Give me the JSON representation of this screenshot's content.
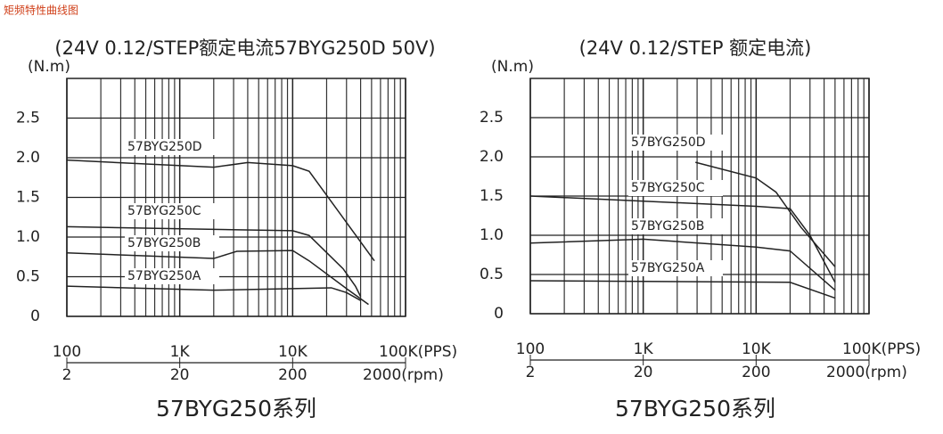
{
  "header": "矩频特性曲线图",
  "chart_data": [
    {
      "type": "line",
      "title": "(24V 0.12/STEP额定电流57BYG250D 50V)",
      "y_label": "(N.m)",
      "caption": "57BYG250系列",
      "xscale": "log",
      "grid": true,
      "color": "#222222",
      "xlim": [
        100,
        100000
      ],
      "xticks": [
        100,
        {
          "value": 1000,
          "label": "1K"
        },
        {
          "value": 10000,
          "label": "10K"
        },
        {
          "value": 100000,
          "label": "100K(PPS)"
        }
      ],
      "x2lim": [
        2,
        2000
      ],
      "x2ticks": [
        2,
        20,
        200,
        {
          "value": 2000,
          "label": "2000(rpm)"
        }
      ],
      "ylim": [
        0,
        3
      ],
      "yticks": [
        0,
        0.5,
        {
          "value": 1,
          "label": "1.0"
        },
        1.5,
        {
          "value": 2,
          "label": "2.0"
        },
        2.5
      ],
      "series": [
        {
          "name": "57BYG250D",
          "x": [
            100,
            2000,
            4000,
            10000,
            14000,
            53000
          ],
          "values": [
            1.97,
            1.88,
            1.94,
            1.9,
            1.83,
            0.7
          ]
        },
        {
          "name": "57BYG250C",
          "x": [
            100,
            10000,
            14000,
            28000,
            36000,
            40000
          ],
          "values": [
            1.13,
            1.08,
            1.02,
            0.6,
            0.38,
            0.25
          ]
        },
        {
          "name": "57BYG250B",
          "x": [
            100,
            2000,
            3200,
            10000,
            14000,
            30000,
            47000
          ],
          "values": [
            0.8,
            0.73,
            0.82,
            0.83,
            0.7,
            0.35,
            0.15
          ]
        },
        {
          "name": "57BYG250A",
          "x": [
            100,
            2000,
            10000,
            22000,
            30000,
            40000
          ],
          "values": [
            0.38,
            0.33,
            0.35,
            0.36,
            0.3,
            0.2
          ]
        }
      ]
    },
    {
      "type": "line",
      "title": "(24V 0.12/STEP 额定电流)",
      "y_label": "(N.m)",
      "caption": "57BYG250系列",
      "xscale": "log",
      "grid": true,
      "color": "#222222",
      "xlim": [
        100,
        100000
      ],
      "xticks": [
        100,
        {
          "value": 1000,
          "label": "1K"
        },
        {
          "value": 10000,
          "label": "10K"
        },
        {
          "value": 100000,
          "label": "100K(PPS)"
        }
      ],
      "x2lim": [
        2,
        2000
      ],
      "x2ticks": [
        2,
        20,
        200,
        {
          "value": 2000,
          "label": "2000(rpm)"
        }
      ],
      "ylim": [
        0,
        3
      ],
      "yticks": [
        0,
        0.5,
        {
          "value": 1,
          "label": "1.0"
        },
        1.5,
        {
          "value": 2,
          "label": "2.0"
        },
        2.5
      ],
      "series": [
        {
          "name": "57BYG250D",
          "x": [
            2900,
            10000,
            15000,
            25000,
            50000
          ],
          "values": [
            1.93,
            1.73,
            1.55,
            1.1,
            0.6
          ]
        },
        {
          "name": "57BYG250C",
          "x": [
            100,
            10000,
            20000,
            30000,
            50000
          ],
          "values": [
            1.5,
            1.37,
            1.34,
            1.0,
            0.4
          ]
        },
        {
          "name": "57BYG250B",
          "x": [
            100,
            1000,
            10000,
            20000,
            50000
          ],
          "values": [
            0.9,
            0.95,
            0.85,
            0.8,
            0.3
          ]
        },
        {
          "name": "57BYG250A",
          "x": [
            100,
            20000,
            50000
          ],
          "values": [
            0.42,
            0.4,
            0.2
          ]
        }
      ]
    }
  ]
}
